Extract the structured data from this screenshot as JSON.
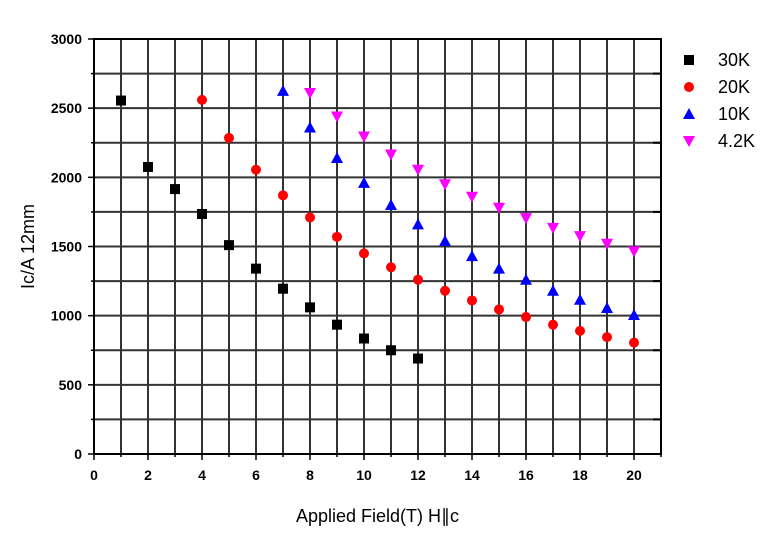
{
  "chart_data": {
    "type": "scatter",
    "xlabel": "Applied Field(T) H∥c",
    "ylabel": "Ic/A 12mm",
    "xlim": [
      0,
      21
    ],
    "ylim": [
      0,
      3000
    ],
    "x_ticks": [
      0,
      2,
      4,
      6,
      8,
      10,
      12,
      14,
      16,
      18,
      20
    ],
    "y_ticks": [
      0,
      500,
      1000,
      1500,
      2000,
      2500,
      3000
    ],
    "grid": true,
    "legend_position": "top-right",
    "series": [
      {
        "name": "30K",
        "marker": "square",
        "color": "#000000",
        "x": [
          1,
          2,
          3,
          4,
          5,
          6,
          7,
          8,
          9,
          10,
          11,
          12
        ],
        "y": [
          2555,
          2075,
          1915,
          1735,
          1510,
          1340,
          1195,
          1060,
          935,
          835,
          750,
          690
        ]
      },
      {
        "name": "20K",
        "marker": "circle",
        "color": "#ff0000",
        "x": [
          4,
          5,
          6,
          7,
          8,
          9,
          10,
          11,
          12,
          13,
          14,
          15,
          16,
          17,
          18,
          19,
          20
        ],
        "y": [
          2560,
          2285,
          2055,
          1870,
          1710,
          1570,
          1450,
          1350,
          1260,
          1180,
          1110,
          1045,
          990,
          935,
          890,
          845,
          805
        ]
      },
      {
        "name": "10K",
        "marker": "triangle-up",
        "color": "#0000ff",
        "x": [
          7,
          8,
          9,
          10,
          11,
          12,
          13,
          14,
          15,
          16,
          17,
          18,
          19,
          20
        ],
        "y": [
          2625,
          2360,
          2140,
          1960,
          1800,
          1660,
          1540,
          1430,
          1340,
          1260,
          1180,
          1115,
          1055,
          1005
        ]
      },
      {
        "name": "4.2K",
        "marker": "triangle-down",
        "color": "#ff00ff",
        "x": [
          8,
          9,
          10,
          11,
          12,
          13,
          14,
          15,
          16,
          17,
          18,
          19,
          20
        ],
        "y": [
          2610,
          2440,
          2295,
          2165,
          2055,
          1950,
          1860,
          1780,
          1705,
          1635,
          1575,
          1520,
          1465
        ]
      }
    ]
  }
}
